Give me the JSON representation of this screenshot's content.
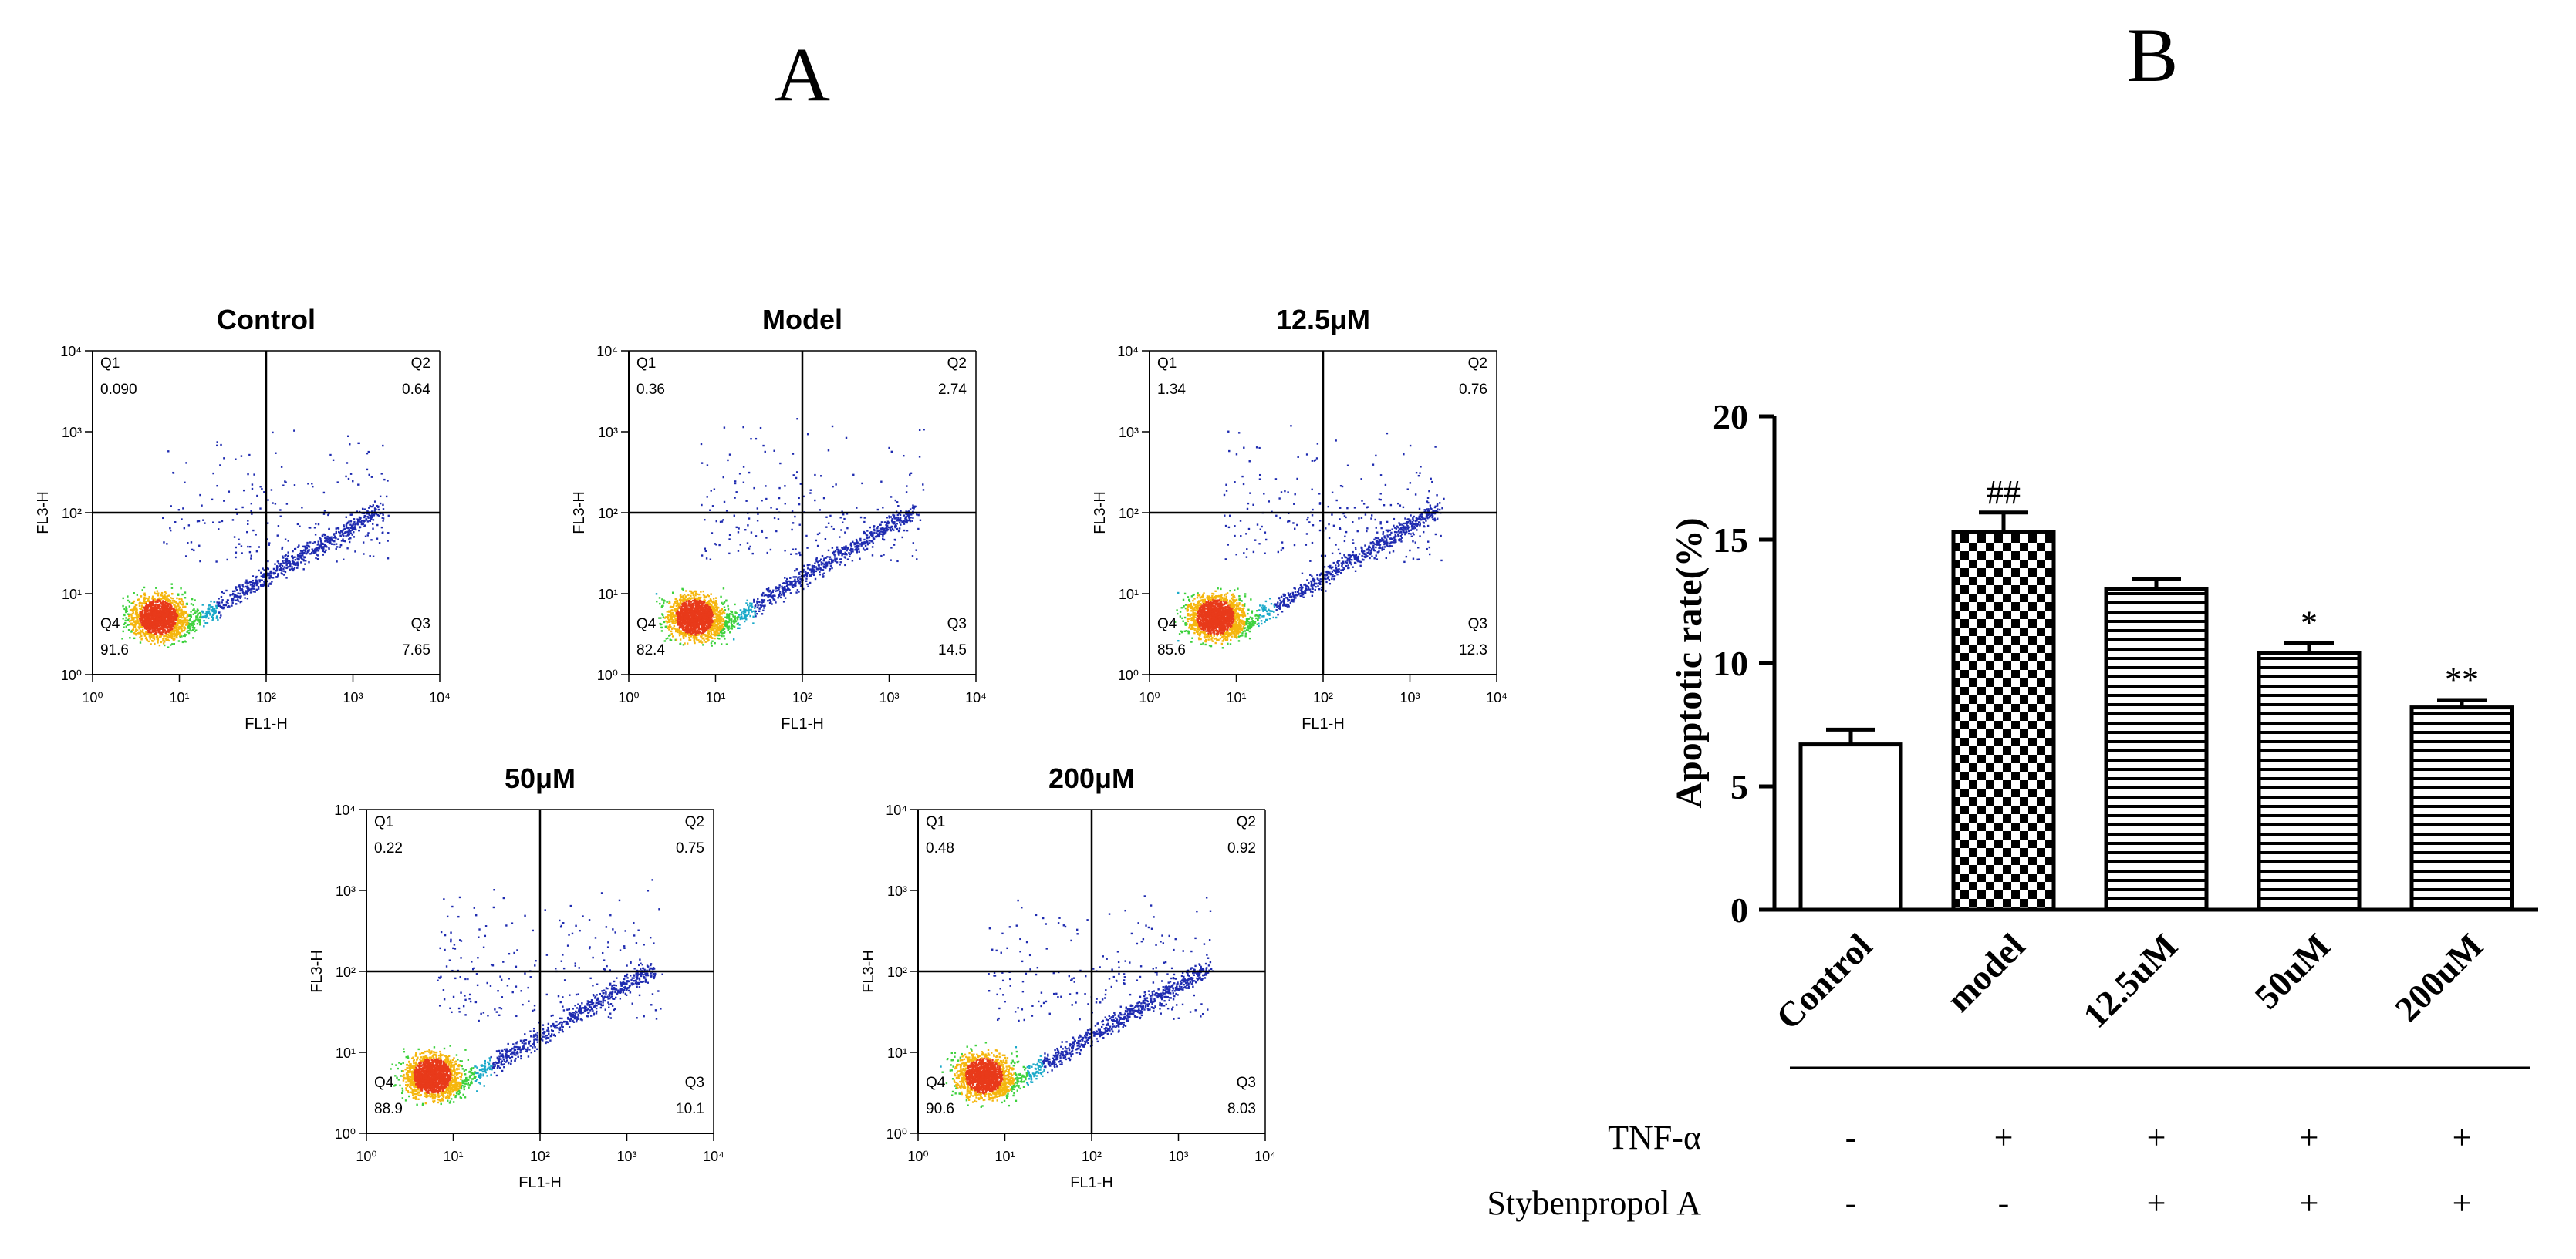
{
  "panels": {
    "a_label": "A",
    "b_label": "B"
  },
  "chart_data": [
    {
      "type": "scatter",
      "title": "Control",
      "xlabel": "FL1-H",
      "ylabel": "FL3-H",
      "axis_scale": "log",
      "xlim": [
        1,
        10000
      ],
      "ylim": [
        1,
        10000
      ],
      "ticks": [
        "10⁰",
        "10¹",
        "10²",
        "10³",
        "10⁴"
      ],
      "gate": [
        100,
        100
      ],
      "quadrants": [
        {
          "name": "Q1",
          "value": "0.090"
        },
        {
          "name": "Q2",
          "value": "0.64"
        },
        {
          "name": "Q3",
          "value": "7.65"
        },
        {
          "name": "Q4",
          "value": "91.6"
        }
      ],
      "density_color": "#1e2bb0"
    },
    {
      "type": "scatter",
      "title": "Model",
      "xlabel": "FL1-H",
      "ylabel": "FL3-H",
      "axis_scale": "log",
      "xlim": [
        1,
        10000
      ],
      "ylim": [
        1,
        10000
      ],
      "ticks": [
        "10⁰",
        "10¹",
        "10²",
        "10³",
        "10⁴"
      ],
      "gate": [
        100,
        100
      ],
      "quadrants": [
        {
          "name": "Q1",
          "value": "0.36"
        },
        {
          "name": "Q2",
          "value": "2.74"
        },
        {
          "name": "Q3",
          "value": "14.5"
        },
        {
          "name": "Q4",
          "value": "82.4"
        }
      ],
      "density_color": "#1e2bb0"
    },
    {
      "type": "scatter",
      "title": "12.5μM",
      "xlabel": "FL1-H",
      "ylabel": "FL3-H",
      "axis_scale": "log",
      "xlim": [
        1,
        10000
      ],
      "ylim": [
        1,
        10000
      ],
      "ticks": [
        "10⁰",
        "10¹",
        "10²",
        "10³",
        "10⁴"
      ],
      "gate": [
        100,
        100
      ],
      "quadrants": [
        {
          "name": "Q1",
          "value": "1.34"
        },
        {
          "name": "Q2",
          "value": "0.76"
        },
        {
          "name": "Q3",
          "value": "12.3"
        },
        {
          "name": "Q4",
          "value": "85.6"
        }
      ],
      "density_color": "#1e2bb0"
    },
    {
      "type": "scatter",
      "title": "50μM",
      "xlabel": "FL1-H",
      "ylabel": "FL3-H",
      "axis_scale": "log",
      "xlim": [
        1,
        10000
      ],
      "ylim": [
        1,
        10000
      ],
      "ticks": [
        "10⁰",
        "10¹",
        "10²",
        "10³",
        "10⁴"
      ],
      "gate": [
        100,
        100
      ],
      "quadrants": [
        {
          "name": "Q1",
          "value": "0.22"
        },
        {
          "name": "Q2",
          "value": "0.75"
        },
        {
          "name": "Q3",
          "value": "10.1"
        },
        {
          "name": "Q4",
          "value": "88.9"
        }
      ],
      "density_color": "#1e2bb0"
    },
    {
      "type": "scatter",
      "title": "200μM",
      "xlabel": "FL1-H",
      "ylabel": "FL3-H",
      "axis_scale": "log",
      "xlim": [
        1,
        10000
      ],
      "ylim": [
        1,
        10000
      ],
      "ticks": [
        "10⁰",
        "10¹",
        "10²",
        "10³",
        "10⁴"
      ],
      "gate": [
        100,
        100
      ],
      "quadrants": [
        {
          "name": "Q1",
          "value": "0.48"
        },
        {
          "name": "Q2",
          "value": "0.92"
        },
        {
          "name": "Q3",
          "value": "8.03"
        },
        {
          "name": "Q4",
          "value": "90.6"
        }
      ],
      "density_color": "#1e2bb0"
    },
    {
      "type": "bar",
      "title": "",
      "ylabel": "Apoptotic rate(%)",
      "ylim": [
        0,
        20
      ],
      "yticks": [
        0,
        5,
        10,
        15,
        20
      ],
      "categories": [
        "Control",
        "model",
        "12.5uM",
        "50uM",
        "200uM"
      ],
      "values": [
        6.7,
        15.3,
        13.0,
        10.4,
        8.2
      ],
      "errors": [
        0.6,
        0.8,
        0.4,
        0.4,
        0.3
      ],
      "annotations": [
        "",
        "##",
        "",
        "*",
        "**"
      ],
      "fill_patterns": [
        "none",
        "checker",
        "hlines",
        "hlines",
        "hlines"
      ],
      "treatment_table": {
        "rows": [
          {
            "label": "TNF-α",
            "signs": [
              "-",
              "+",
              "+",
              "+",
              "+"
            ]
          },
          {
            "label": "Stybenpropol A",
            "signs": [
              "-",
              "-",
              "+",
              "+",
              "+"
            ]
          }
        ]
      }
    }
  ]
}
